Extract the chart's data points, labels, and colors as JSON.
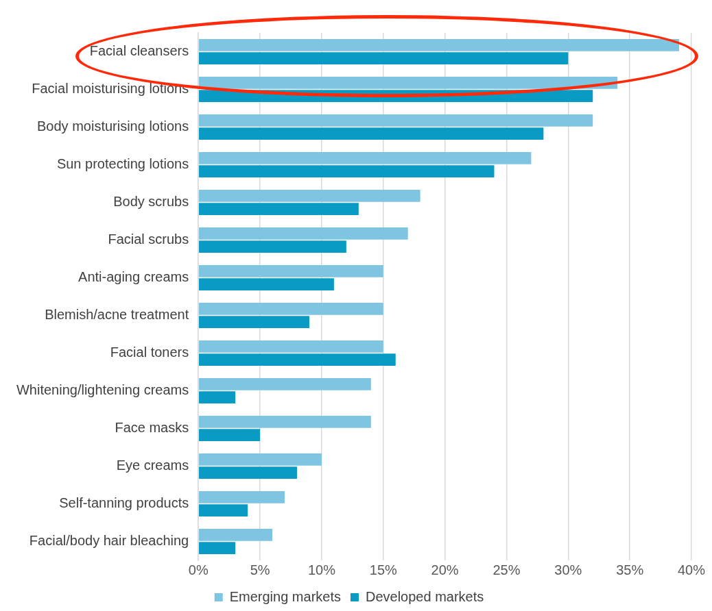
{
  "chart_data": {
    "type": "bar",
    "orientation": "horizontal",
    "categories": [
      "Facial cleansers",
      "Facial moisturising lotions",
      "Body moisturising lotions",
      "Sun protecting lotions",
      "Body scrubs",
      "Facial scrubs",
      "Anti-aging creams",
      "Blemish/acne treatment",
      "Facial toners",
      "Whitening/lightening creams",
      "Face masks",
      "Eye creams",
      "Self-tanning products",
      "Facial/body hair bleaching"
    ],
    "series": [
      {
        "name": "Emerging markets",
        "color": "#7fc4e0",
        "values": [
          39,
          34,
          32,
          27,
          18,
          17,
          15,
          15,
          15,
          14,
          14,
          10,
          7,
          6
        ]
      },
      {
        "name": "Developed markets",
        "color": "#0a9bc4",
        "values": [
          30,
          32,
          28,
          24,
          13,
          12,
          11,
          9,
          16,
          3,
          5,
          8,
          4,
          3
        ]
      }
    ],
    "xlim": [
      0,
      40
    ],
    "xticks": [
      {
        "value": 0,
        "label": "0%"
      },
      {
        "value": 5,
        "label": "5%"
      },
      {
        "value": 10,
        "label": "10%"
      },
      {
        "value": 15,
        "label": "15%"
      },
      {
        "value": 20,
        "label": "20%"
      },
      {
        "value": 25,
        "label": "25%"
      },
      {
        "value": 30,
        "label": "30%"
      },
      {
        "value": 35,
        "label": "35%"
      },
      {
        "value": 40,
        "label": "40%"
      }
    ],
    "grid": "x",
    "legend": "bottom"
  }
}
